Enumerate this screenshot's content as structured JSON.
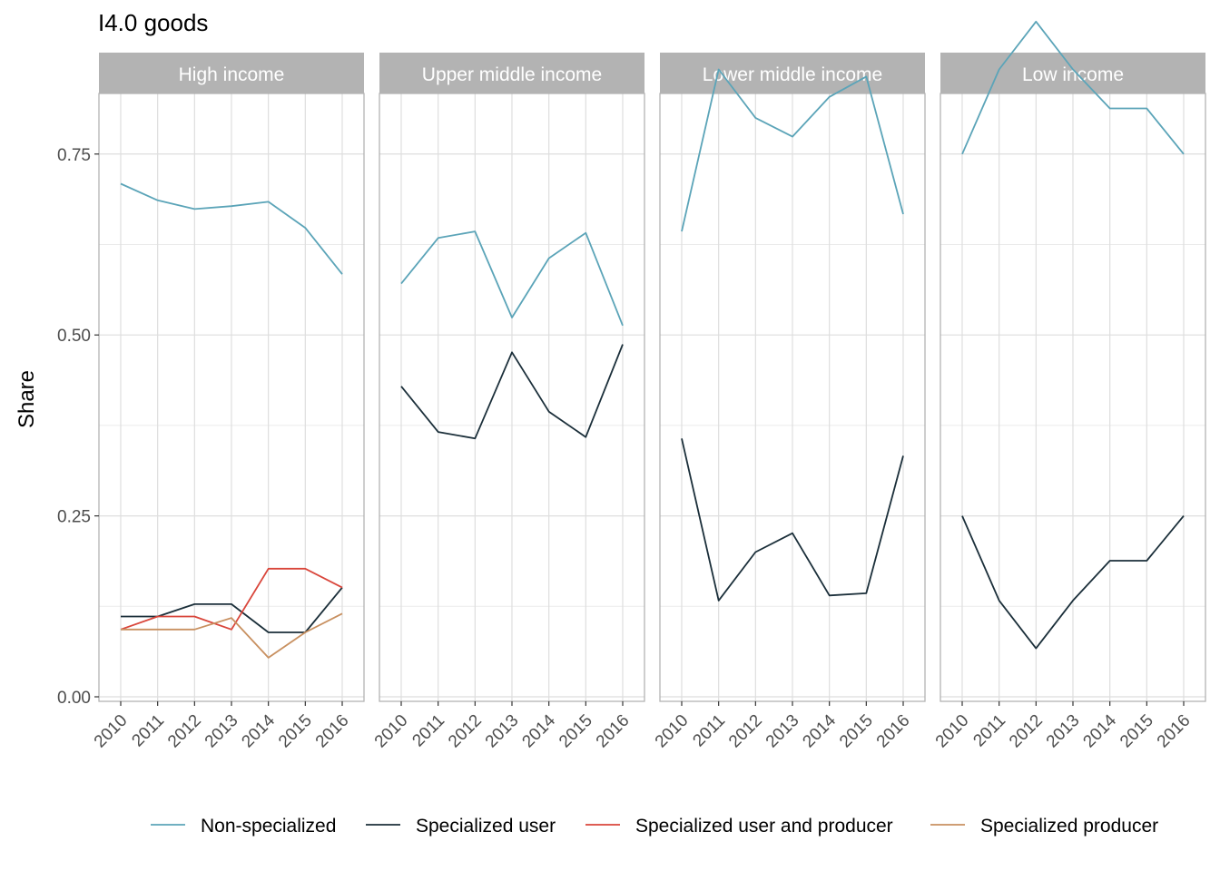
{
  "chart_data": {
    "type": "line",
    "title": "I4.0 goods",
    "ylabel": "Share",
    "xlabel": "",
    "ylim": [
      0,
      0.84
    ],
    "yticks": [
      0.0,
      0.25,
      0.5,
      0.75
    ],
    "ytick_labels": [
      "0.00",
      "0.25",
      "0.50",
      "0.75"
    ],
    "x": [
      2010,
      2011,
      2012,
      2013,
      2014,
      2015,
      2016
    ],
    "x_labels": [
      "2010",
      "2011",
      "2012",
      "2013",
      "2014",
      "2015",
      "2016"
    ],
    "grid": true,
    "legend_position": "bottom",
    "series_styles": [
      {
        "name": "Non-specialized",
        "color": "#5BA4B8"
      },
      {
        "name": "Specialized user",
        "color": "#1B2F3A"
      },
      {
        "name": "Specialized user and producer",
        "color": "#D9463B"
      },
      {
        "name": "Specialized producer",
        "color": "#C89060"
      }
    ],
    "panels": [
      {
        "label": "High income",
        "series": [
          {
            "name": "Non-specialized",
            "values": [
              0.709,
              0.686,
              0.674,
              0.678,
              0.684,
              0.648,
              0.584
            ]
          },
          {
            "name": "Specialized user",
            "values": [
              0.111,
              0.111,
              0.128,
              0.128,
              0.089,
              0.089,
              0.151
            ]
          },
          {
            "name": "Specialized user and producer",
            "values": [
              0.093,
              0.111,
              0.111,
              0.093,
              0.177,
              0.177,
              0.151
            ]
          },
          {
            "name": "Specialized producer",
            "values": [
              0.093,
              0.093,
              0.093,
              0.109,
              0.054,
              0.089,
              0.115
            ]
          }
        ]
      },
      {
        "label": "Upper middle income",
        "series": [
          {
            "name": "Non-specialized",
            "values": [
              0.571,
              0.634,
              0.643,
              0.524,
              0.606,
              0.641,
              0.513
            ]
          },
          {
            "name": "Specialized user",
            "values": [
              0.429,
              0.366,
              0.357,
              0.476,
              0.394,
              0.359,
              0.487
            ]
          }
        ]
      },
      {
        "label": "Lower middle income",
        "series": [
          {
            "name": "Non-specialized",
            "values": [
              0.643,
              0.867,
              0.8,
              0.774,
              0.829,
              0.857,
              0.667
            ]
          },
          {
            "name": "Specialized user",
            "values": [
              0.357,
              0.133,
              0.2,
              0.226,
              0.14,
              0.143,
              0.333
            ]
          }
        ]
      },
      {
        "label": "Low income",
        "series": [
          {
            "name": "Non-specialized",
            "values": [
              0.75,
              0.867,
              0.933,
              0.867,
              0.813,
              0.813,
              0.75
            ]
          },
          {
            "name": "Specialized user",
            "values": [
              0.25,
              0.133,
              0.067,
              0.133,
              0.188,
              0.188,
              0.25
            ]
          }
        ]
      }
    ]
  }
}
